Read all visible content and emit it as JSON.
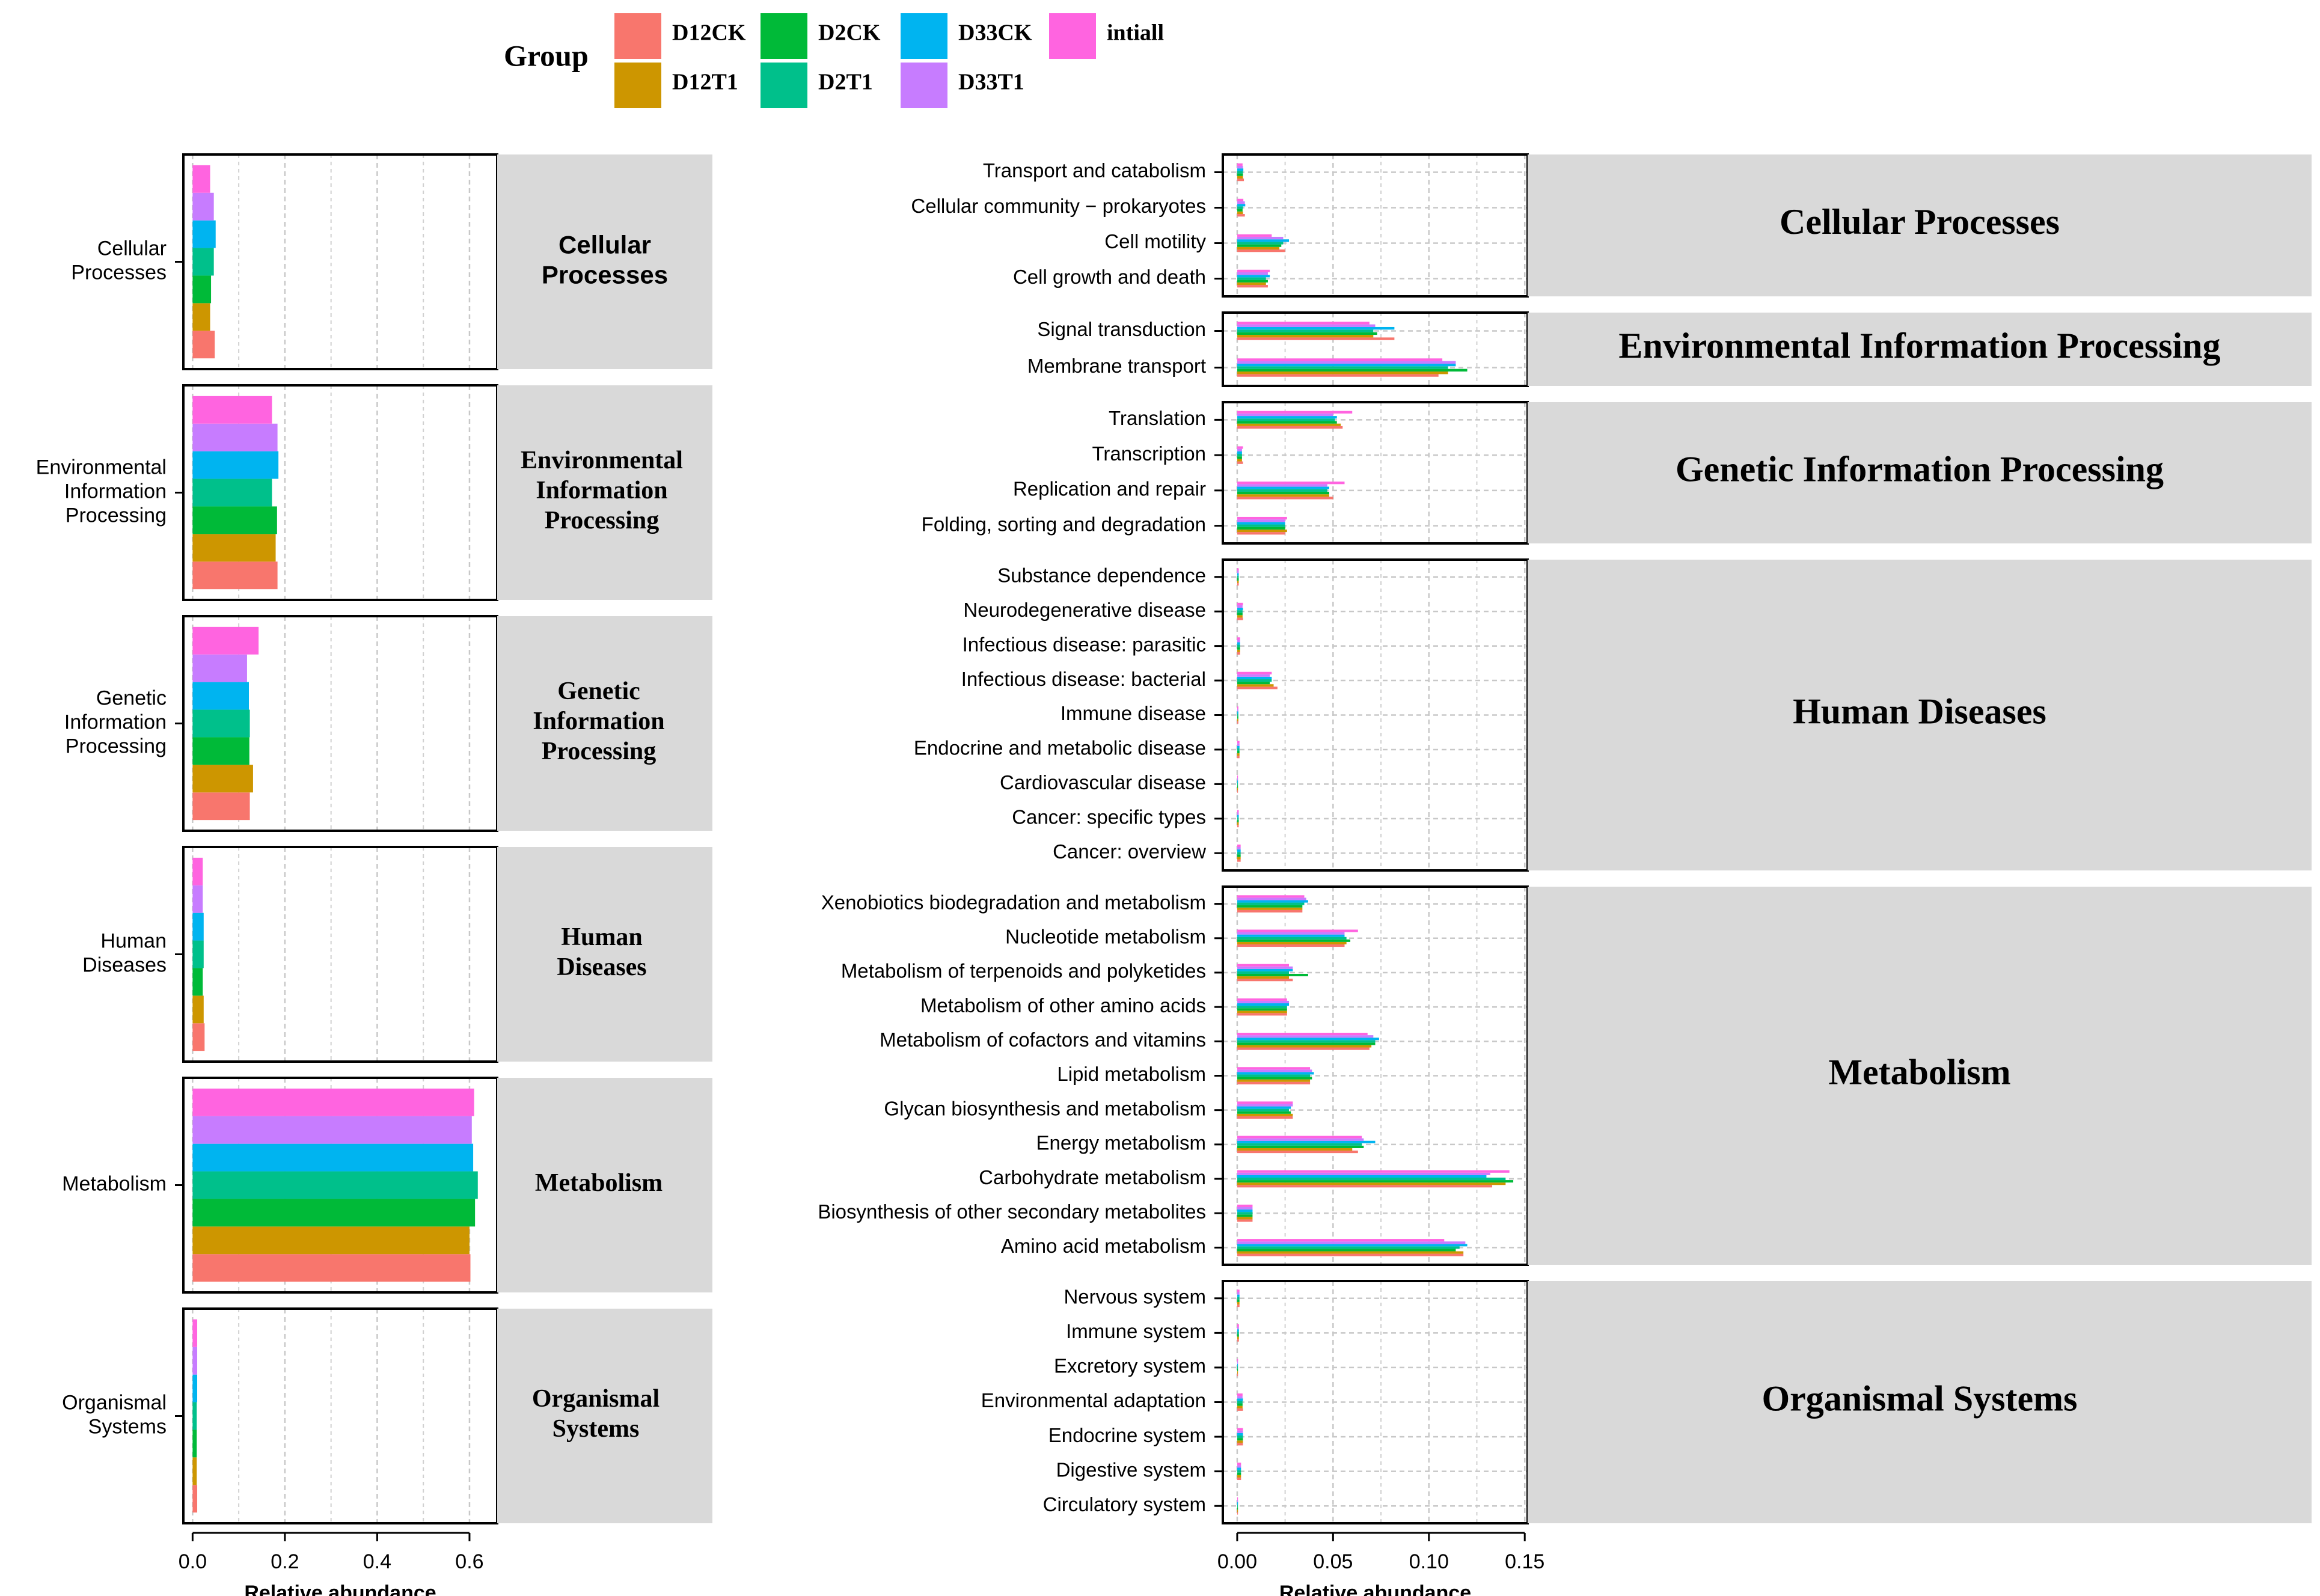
{
  "legend": {
    "title": "Group",
    "items": [
      {
        "key": "D12CK",
        "label": "D12CK",
        "color": "#F8766D"
      },
      {
        "key": "D12T1",
        "label": "D12T1",
        "color": "#CD9600"
      },
      {
        "key": "D2CK",
        "label": "D2CK",
        "color": "#00BA38"
      },
      {
        "key": "D2T1",
        "label": "D2T1",
        "color": "#00C08B"
      },
      {
        "key": "D33CK",
        "label": "D33CK",
        "color": "#00B4F0"
      },
      {
        "key": "D33T1",
        "label": "D33T1",
        "color": "#C77CFF"
      },
      {
        "key": "intiall",
        "label": "intiall",
        "color": "#FF64E0"
      }
    ]
  },
  "chart_data": [
    {
      "type": "bar",
      "orientation": "horizontal",
      "title": "",
      "xlabel": "Relative abundance",
      "ylabel": "",
      "xlim": [
        -0.02,
        0.66
      ],
      "x_ticks": [
        "0.0",
        "0.2",
        "0.4",
        "0.6"
      ],
      "x_tick_values": [
        0,
        0.2,
        0.4,
        0.6
      ],
      "grid": true,
      "series_names": [
        "D12CK",
        "D12T1",
        "D2CK",
        "D2T1",
        "D33CK",
        "D33T1",
        "intiall"
      ],
      "panels": [
        {
          "strip": "Cellular\nProcesses",
          "strip_style": "sans-bold",
          "categories": [
            {
              "label": "Cellular\nProcesses",
              "values": [
                0.048,
                0.038,
                0.04,
                0.046,
                0.05,
                0.046,
                0.038
              ]
            }
          ]
        },
        {
          "strip": "Environmental\nInformation\nProcessing",
          "strip_style": "serif-bold",
          "categories": [
            {
              "label": "Environmental\nInformation\nProcessing",
              "values": [
                0.184,
                0.18,
                0.183,
                0.172,
                0.186,
                0.184,
                0.172
              ]
            }
          ]
        },
        {
          "strip": "Genetic\nInformation\nProcessing",
          "strip_style": "serif-bold",
          "categories": [
            {
              "label": "Genetic\nInformation\nProcessing",
              "values": [
                0.124,
                0.131,
                0.123,
                0.124,
                0.122,
                0.118,
                0.143
              ]
            }
          ]
        },
        {
          "strip": "Human\nDiseases",
          "strip_style": "serif-bold",
          "categories": [
            {
              "label": "Human\nDiseases",
              "values": [
                0.026,
                0.024,
                0.022,
                0.024,
                0.024,
                0.022,
                0.022
              ]
            }
          ]
        },
        {
          "strip": "Metabolism",
          "strip_style": "serif-bold",
          "categories": [
            {
              "label": "Metabolism",
              "values": [
                0.602,
                0.6,
                0.612,
                0.618,
                0.608,
                0.605,
                0.61
              ]
            }
          ]
        },
        {
          "strip": "Organismal\nSystems",
          "strip_style": "serif-bold",
          "categories": [
            {
              "label": "Organismal\nSystems",
              "values": [
                0.01,
                0.009,
                0.009,
                0.009,
                0.01,
                0.01,
                0.01
              ]
            }
          ]
        }
      ]
    },
    {
      "type": "bar",
      "orientation": "horizontal",
      "title": "",
      "xlabel": "Relative abundance",
      "ylabel": "",
      "xlim": [
        -0.0075,
        0.1515
      ],
      "x_ticks": [
        "0.00",
        "0.05",
        "0.10",
        "0.15"
      ],
      "x_tick_values": [
        0,
        0.05,
        0.1,
        0.15
      ],
      "grid": true,
      "series_names": [
        "D12CK",
        "D12T1",
        "D2CK",
        "D2T1",
        "D33CK",
        "D33T1",
        "intiall"
      ],
      "panels": [
        {
          "strip": "Cellular Processes",
          "categories": [
            {
              "label": "Transport and catabolism",
              "values": [
                0.0035,
                0.003,
                0.003,
                0.003,
                0.0032,
                0.003,
                0.0028
              ]
            },
            {
              "label": "Cellular community − prokaryotes",
              "values": [
                0.004,
                0.003,
                0.0028,
                0.003,
                0.0042,
                0.004,
                0.0032
              ]
            },
            {
              "label": "Cell motility",
              "values": [
                0.025,
                0.022,
                0.023,
                0.024,
                0.027,
                0.024,
                0.018
              ]
            },
            {
              "label": "Cell growth and death",
              "values": [
                0.016,
                0.015,
                0.016,
                0.015,
                0.017,
                0.016,
                0.017
              ]
            }
          ]
        },
        {
          "strip": "Environmental Information Processing",
          "categories": [
            {
              "label": "Signal transduction",
              "values": [
                0.082,
                0.071,
                0.073,
                0.071,
                0.082,
                0.072,
                0.069
              ]
            },
            {
              "label": "Membrane transport",
              "values": [
                0.105,
                0.11,
                0.12,
                0.11,
                0.114,
                0.114,
                0.107
              ]
            }
          ]
        },
        {
          "strip": "Genetic Information Processing",
          "categories": [
            {
              "label": "Translation",
              "values": [
                0.055,
                0.054,
                0.052,
                0.051,
                0.052,
                0.05,
                0.06
              ]
            },
            {
              "label": "Transcription",
              "values": [
                0.003,
                0.0025,
                0.0025,
                0.0025,
                0.0025,
                0.0025,
                0.003
              ]
            },
            {
              "label": "Replication and repair",
              "values": [
                0.05,
                0.048,
                0.048,
                0.047,
                0.048,
                0.047,
                0.056
              ]
            },
            {
              "label": "Folding, sorting and degradation",
              "values": [
                0.025,
                0.026,
                0.025,
                0.025,
                0.025,
                0.025,
                0.026
              ]
            }
          ]
        },
        {
          "strip": "Human Diseases",
          "categories": [
            {
              "label": "Substance dependence",
              "values": [
                0.0008,
                0.0008,
                0.0008,
                0.0008,
                0.0008,
                0.0008,
                0.0008
              ]
            },
            {
              "label": "Neurodegenerative disease",
              "values": [
                0.003,
                0.0028,
                0.0028,
                0.0028,
                0.003,
                0.0028,
                0.003
              ]
            },
            {
              "label": "Infectious disease: parasitic",
              "values": [
                0.0015,
                0.0015,
                0.0015,
                0.0015,
                0.0015,
                0.0015,
                0.0015
              ]
            },
            {
              "label": "Infectious disease: bacterial",
              "values": [
                0.021,
                0.019,
                0.017,
                0.018,
                0.018,
                0.017,
                0.018
              ]
            },
            {
              "label": "Immune disease",
              "values": [
                0.0006,
                0.0006,
                0.0006,
                0.0006,
                0.0006,
                0.0006,
                0.0006
              ]
            },
            {
              "label": "Endocrine and metabolic disease",
              "values": [
                0.0012,
                0.0012,
                0.0012,
                0.0012,
                0.0012,
                0.0012,
                0.0012
              ]
            },
            {
              "label": "Cardiovascular disease",
              "values": [
                0.0004,
                0.0004,
                0.0004,
                0.0004,
                0.0004,
                0.0004,
                0.0004
              ]
            },
            {
              "label": "Cancer: specific types",
              "values": [
                0.0008,
                0.0008,
                0.0008,
                0.0008,
                0.0008,
                0.0008,
                0.0008
              ]
            },
            {
              "label": "Cancer: overview",
              "values": [
                0.0018,
                0.0018,
                0.0018,
                0.0018,
                0.0018,
                0.0018,
                0.0018
              ]
            }
          ]
        },
        {
          "strip": "Metabolism",
          "categories": [
            {
              "label": "Xenobiotics biodegradation and metabolism",
              "values": [
                0.034,
                0.034,
                0.034,
                0.035,
                0.037,
                0.036,
                0.035
              ]
            },
            {
              "label": "Nucleotide metabolism",
              "values": [
                0.056,
                0.057,
                0.059,
                0.057,
                0.056,
                0.056,
                0.063
              ]
            },
            {
              "label": "Metabolism of terpenoids and polyketides",
              "values": [
                0.029,
                0.027,
                0.037,
                0.027,
                0.029,
                0.029,
                0.027
              ]
            },
            {
              "label": "Metabolism of other amino acids",
              "values": [
                0.026,
                0.026,
                0.026,
                0.026,
                0.027,
                0.027,
                0.026
              ]
            },
            {
              "label": "Metabolism of cofactors and vitamins",
              "values": [
                0.069,
                0.07,
                0.072,
                0.072,
                0.074,
                0.071,
                0.068
              ]
            },
            {
              "label": "Lipid metabolism",
              "values": [
                0.038,
                0.038,
                0.039,
                0.038,
                0.04,
                0.039,
                0.038
              ]
            },
            {
              "label": "Glycan biosynthesis and metabolism",
              "values": [
                0.029,
                0.029,
                0.028,
                0.027,
                0.028,
                0.029,
                0.029
              ]
            },
            {
              "label": "Energy metabolism",
              "values": [
                0.063,
                0.06,
                0.066,
                0.065,
                0.072,
                0.066,
                0.065
              ]
            },
            {
              "label": "Carbohydrate metabolism",
              "values": [
                0.133,
                0.14,
                0.144,
                0.14,
                0.13,
                0.132,
                0.142
              ]
            },
            {
              "label": "Biosynthesis of other secondary metabolites",
              "values": [
                0.008,
                0.008,
                0.008,
                0.008,
                0.008,
                0.008,
                0.008
              ]
            },
            {
              "label": "Amino acid metabolism",
              "values": [
                0.118,
                0.118,
                0.114,
                0.116,
                0.12,
                0.119,
                0.108
              ]
            }
          ]
        },
        {
          "strip": "Organismal Systems",
          "categories": [
            {
              "label": "Nervous system",
              "values": [
                0.0012,
                0.0012,
                0.0012,
                0.0012,
                0.0012,
                0.0012,
                0.0012
              ]
            },
            {
              "label": "Immune system",
              "values": [
                0.0009,
                0.0009,
                0.0009,
                0.0009,
                0.0009,
                0.0009,
                0.0009
              ]
            },
            {
              "label": "Excretory system",
              "values": [
                0.0004,
                0.0004,
                0.0004,
                0.0004,
                0.0004,
                0.0004,
                0.0004
              ]
            },
            {
              "label": "Environmental adaptation",
              "values": [
                0.003,
                0.0028,
                0.0028,
                0.0028,
                0.003,
                0.0028,
                0.0028
              ]
            },
            {
              "label": "Endocrine system",
              "values": [
                0.003,
                0.003,
                0.003,
                0.003,
                0.003,
                0.003,
                0.003
              ]
            },
            {
              "label": "Digestive system",
              "values": [
                0.002,
                0.002,
                0.002,
                0.002,
                0.002,
                0.002,
                0.002
              ]
            },
            {
              "label": "Circulatory system",
              "values": [
                0.0004,
                0.0004,
                0.0004,
                0.0004,
                0.0004,
                0.0004,
                0.0004
              ]
            }
          ]
        }
      ]
    }
  ]
}
